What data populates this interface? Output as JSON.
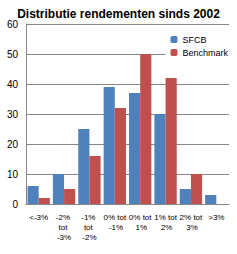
{
  "chart_data": {
    "type": "bar",
    "title": "Distributie rendementen sinds 2002",
    "categories": [
      "<-3%",
      "-2% tot -3%",
      "-1% tot -2%",
      "0% tot -1%",
      "0% tot 1%",
      "1% tot 2%",
      "2% tot 3%",
      ">3%"
    ],
    "series": [
      {
        "name": "SFCB",
        "color": "#4f81bd",
        "values": [
          6,
          10,
          25,
          39,
          37,
          30,
          5,
          3
        ]
      },
      {
        "name": "Benchmark",
        "color": "#c0504d",
        "values": [
          2,
          5,
          16,
          32,
          50,
          42,
          10,
          0
        ]
      }
    ],
    "ylim": [
      0,
      60
    ],
    "yticks": [
      0,
      10,
      20,
      30,
      40,
      50,
      60
    ],
    "grid": true,
    "legend": "upper right"
  }
}
